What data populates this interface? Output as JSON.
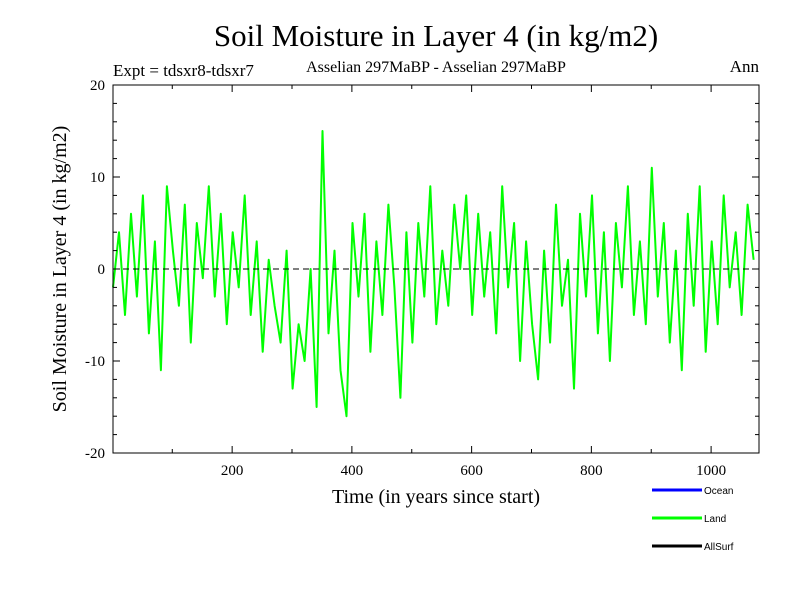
{
  "chart_data": {
    "type": "line",
    "title": "Soil Moisture in Layer 4 (in kg/m2)",
    "subtitle_left": "Expt = tdsxr8-tdsxr7",
    "subtitle_center": "Asselian 297MaBP - Asselian 297MaBP",
    "subtitle_right": "Ann",
    "xlabel": "Time (in years since start)",
    "ylabel": "Soil Moisture in Layer 4 (in kg/m2)",
    "xlim": [
      1,
      1080
    ],
    "ylim": [
      -20,
      20
    ],
    "xticks": [
      200,
      400,
      600,
      800,
      1000
    ],
    "yticks": [
      -20,
      -10,
      0,
      10,
      20
    ],
    "zero_line": 0,
    "legend": [
      {
        "name": "Ocean",
        "color": "#0000ff"
      },
      {
        "name": "Land",
        "color": "#00ff00"
      },
      {
        "name": "AllSurf",
        "color": "#000000"
      }
    ],
    "series": [
      {
        "name": "Land",
        "color": "#00ff00",
        "x_start": 1,
        "x_step": 10,
        "values": [
          -2,
          4,
          -5,
          6,
          -3,
          8,
          -7,
          3,
          -11,
          9,
          2,
          -4,
          7,
          -8,
          5,
          -1,
          9,
          -3,
          6,
          -6,
          4,
          -2,
          8,
          -5,
          3,
          -9,
          1,
          -4,
          -8,
          2,
          -13,
          -6,
          -10,
          0,
          -15,
          15,
          -7,
          2,
          -11,
          -16,
          5,
          -3,
          6,
          -9,
          3,
          -5,
          7,
          -2,
          -14,
          4,
          -8,
          5,
          -3,
          9,
          -6,
          2,
          -4,
          7,
          0,
          8,
          -5,
          6,
          -3,
          4,
          -7,
          9,
          -2,
          5,
          -10,
          3,
          -6,
          -12,
          2,
          -8,
          7,
          -4,
          1,
          -13,
          6,
          -3,
          8,
          -7,
          4,
          -10,
          5,
          -2,
          9,
          -5,
          3,
          -6,
          11,
          -3,
          5,
          -8,
          2,
          -11,
          6,
          -4,
          9,
          -9,
          3,
          -6,
          8,
          -2,
          4,
          -5,
          7,
          1
        ]
      }
    ]
  }
}
